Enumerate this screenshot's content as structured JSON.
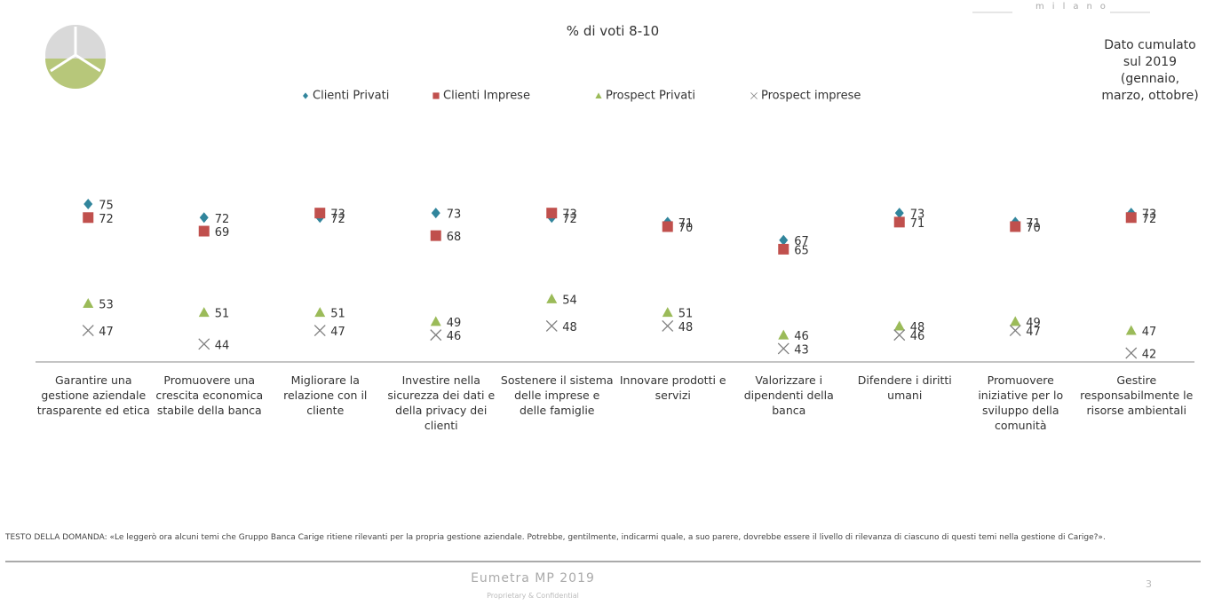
{
  "chart_data": {
    "type": "dot",
    "title": "% di voti 8-10",
    "brand": "milano",
    "side_note": "Dato cumulato sul 2019 (gennaio, marzo, ottobre)",
    "categories": [
      "Garantire una gestione aziendale trasparente ed etica",
      "Promuovere una crescita economica stabile della banca",
      "Migliorare la relazione con il cliente",
      "Investire nella sicurezza dei dati e della privacy dei clienti",
      "Sostenere il sistema delle imprese e delle famiglie",
      "Innovare prodotti e servizi",
      "Valorizzare i dipendenti della banca",
      "Difendere i diritti umani",
      "Promuovere iniziative per lo sviluppo della comunità",
      "Gestire responsabilmente le risorse ambientali"
    ],
    "series": [
      {
        "name": "Clienti Privati",
        "color": "#31859c",
        "marker": "diamond",
        "values": [
          75,
          72,
          72,
          73,
          72,
          71,
          67,
          73,
          71,
          73
        ]
      },
      {
        "name": "Clienti Imprese",
        "color": "#c0504d",
        "marker": "square",
        "values": [
          72,
          69,
          73,
          68,
          73,
          70,
          65,
          71,
          70,
          72
        ]
      },
      {
        "name": "Prospect Privati",
        "color": "#9bbb59",
        "marker": "triangle",
        "values": [
          53,
          51,
          51,
          49,
          54,
          51,
          46,
          48,
          49,
          47
        ]
      },
      {
        "name": "Prospect imprese",
        "color": "#7f7f7f",
        "marker": "cross",
        "values": [
          47,
          44,
          47,
          46,
          48,
          48,
          43,
          46,
          47,
          42
        ]
      }
    ],
    "question": "TESTO DELLA DOMANDA: «Le leggerò ora alcuni temi che Gruppo Banca Carige ritiene rilevanti per la propria gestione aziendale. Potrebbe, gentilmente, indicarmi quale, a suo parere, dovrebbe essere il livello di rilevanza di ciascuno di questi temi nella gestione di Carige?».",
    "footer": "Eumetra MP 2019",
    "footer_sub": "Proprietary & Confidential",
    "page_number": "3"
  }
}
